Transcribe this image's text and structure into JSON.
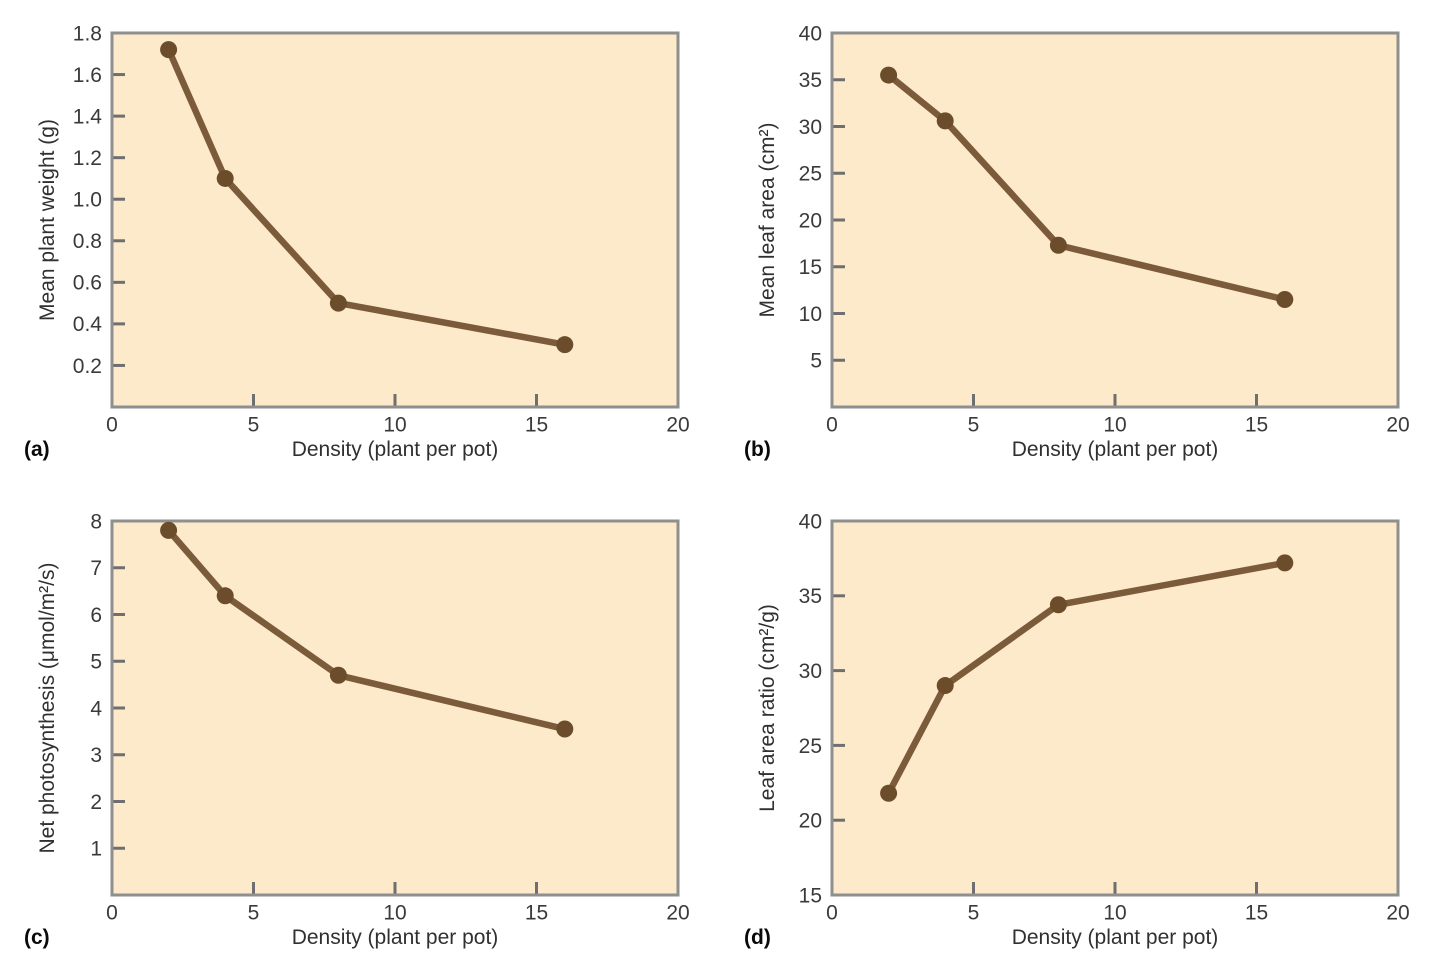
{
  "colors": {
    "plot_bg": "#FCEACA",
    "line": "#7B5B39",
    "marker": "#6C4D2B",
    "axis_border": "#8F8F8F",
    "tick": "#6F6F6F",
    "tick_text": "#3A3A3A",
    "title_text": "#303030"
  },
  "chart_data": [
    {
      "id": "a",
      "panel_label": "(a)",
      "type": "line",
      "x": [
        2,
        4,
        8,
        16
      ],
      "y": [
        1.72,
        1.1,
        0.5,
        0.3
      ],
      "xlabel": "Density (plant per pot)",
      "ylabel": "Mean plant weight (g)",
      "xlim": [
        0,
        20
      ],
      "ylim": [
        0,
        1.8
      ],
      "xticks": [
        0,
        5,
        10,
        15,
        20
      ],
      "xtick_labels": [
        "0",
        "5",
        "10",
        "15",
        "20"
      ],
      "yticks": [
        0.2,
        0.4,
        0.6,
        0.8,
        1.0,
        1.2,
        1.4,
        1.6,
        1.8
      ],
      "ytick_labels": [
        "0.2",
        "0.4",
        "0.6",
        "0.8",
        "1.0",
        "1.2",
        "1.4",
        "1.6",
        "1.8"
      ],
      "grid": false,
      "legend": "none",
      "marker": "circle"
    },
    {
      "id": "b",
      "panel_label": "(b)",
      "type": "line",
      "x": [
        2,
        4,
        8,
        16
      ],
      "y": [
        35.5,
        30.6,
        17.3,
        11.5
      ],
      "xlabel": "Density (plant per pot)",
      "ylabel": "Mean leaf area (cm²)",
      "xlim": [
        0,
        20
      ],
      "ylim": [
        0,
        40
      ],
      "xticks": [
        0,
        5,
        10,
        15,
        20
      ],
      "xtick_labels": [
        "0",
        "5",
        "10",
        "15",
        "20"
      ],
      "yticks": [
        5,
        10,
        15,
        20,
        25,
        30,
        35,
        40
      ],
      "ytick_labels": [
        "5",
        "10",
        "15",
        "20",
        "25",
        "30",
        "35",
        "40"
      ],
      "grid": false,
      "legend": "none",
      "marker": "circle"
    },
    {
      "id": "c",
      "panel_label": "(c)",
      "type": "line",
      "x": [
        2,
        4,
        8,
        16
      ],
      "y": [
        7.8,
        6.4,
        4.7,
        3.55
      ],
      "xlabel": "Density (plant per pot)",
      "ylabel": "Net photosynthesis (μmol/m²/s)",
      "xlim": [
        0,
        20
      ],
      "ylim": [
        0,
        8
      ],
      "xticks": [
        0,
        5,
        10,
        15,
        20
      ],
      "xtick_labels": [
        "0",
        "5",
        "10",
        "15",
        "20"
      ],
      "yticks": [
        1,
        2,
        3,
        4,
        5,
        6,
        7,
        8
      ],
      "ytick_labels": [
        "1",
        "2",
        "3",
        "4",
        "5",
        "6",
        "7",
        "8"
      ],
      "grid": false,
      "legend": "none",
      "marker": "circle"
    },
    {
      "id": "d",
      "panel_label": "(d)",
      "type": "line",
      "x": [
        2,
        4,
        8,
        16
      ],
      "y": [
        21.8,
        29.0,
        34.4,
        37.2
      ],
      "xlabel": "Density (plant per pot)",
      "ylabel": "Leaf area ratio (cm²/g)",
      "xlim": [
        0,
        20
      ],
      "ylim": [
        15,
        40
      ],
      "xticks": [
        0,
        5,
        10,
        15,
        20
      ],
      "xtick_labels": [
        "0",
        "5",
        "10",
        "15",
        "20"
      ],
      "yticks": [
        15,
        20,
        25,
        30,
        35,
        40
      ],
      "ytick_labels": [
        "15",
        "20",
        "25",
        "30",
        "35",
        "40"
      ],
      "grid": false,
      "legend": "none",
      "marker": "circle"
    }
  ]
}
